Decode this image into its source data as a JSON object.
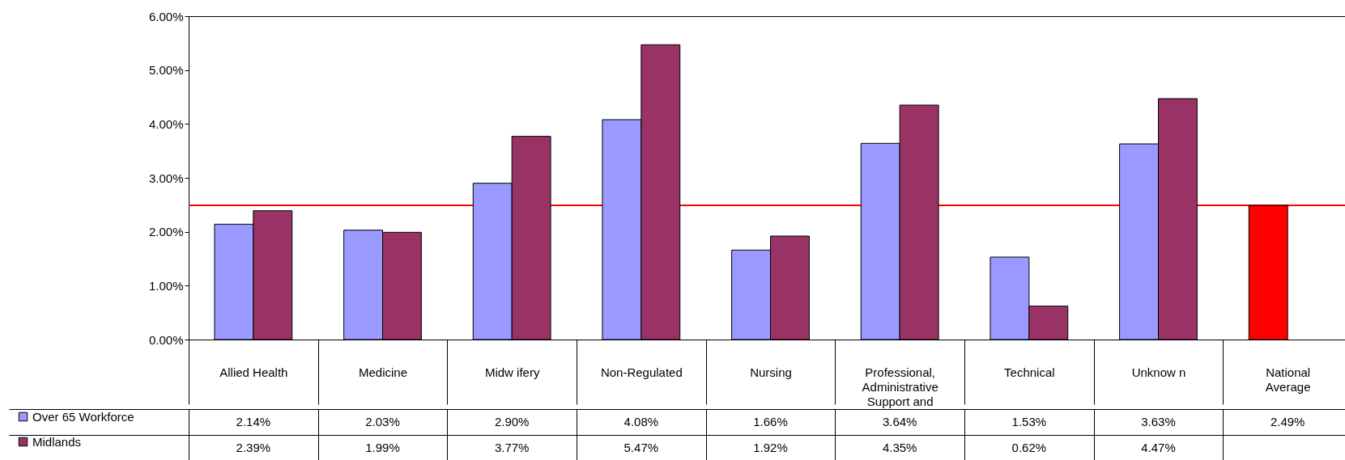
{
  "chart_data": {
    "type": "bar",
    "categories": [
      "Allied Health",
      "Medicine",
      "Midw ifery",
      "Non-Regulated",
      "Nursing",
      "Professional, Administrative Support and",
      "Technical",
      "Unknow n",
      "National Average"
    ],
    "series": [
      {
        "name": "Over 65 Workforce",
        "color": "#9999ff",
        "colors": [
          "#9999ff",
          "#9999ff",
          "#9999ff",
          "#9999ff",
          "#9999ff",
          "#9999ff",
          "#9999ff",
          "#9999ff",
          "#ff0000"
        ],
        "values": [
          2.14,
          2.03,
          2.9,
          4.08,
          1.66,
          3.64,
          1.53,
          3.63,
          2.49
        ],
        "value_labels": [
          "2.14%",
          "2.03%",
          "2.90%",
          "4.08%",
          "1.66%",
          "3.64%",
          "1.53%",
          "3.63%",
          "2.49%"
        ]
      },
      {
        "name": "Midlands",
        "color": "#993366",
        "values": [
          2.39,
          1.99,
          3.77,
          5.47,
          1.92,
          4.35,
          0.62,
          4.47,
          null
        ],
        "value_labels": [
          "2.39%",
          "1.99%",
          "3.77%",
          "5.47%",
          "1.92%",
          "4.35%",
          "0.62%",
          "4.47%",
          null
        ]
      }
    ],
    "ylim": [
      0,
      6
    ],
    "yticks": [
      {
        "value": 0,
        "label": "0.00%"
      },
      {
        "value": 1,
        "label": "1.00%"
      },
      {
        "value": 2,
        "label": "2.00%"
      },
      {
        "value": 3,
        "label": "3.00%"
      },
      {
        "value": 4,
        "label": "4.00%"
      },
      {
        "value": 5,
        "label": "5.00%"
      },
      {
        "value": 6,
        "label": "6.00%"
      }
    ],
    "ref_lines": [
      {
        "axis": "y",
        "value": 2.49,
        "color": "#ff0000"
      }
    ],
    "grid": false,
    "legend": "bottom left"
  }
}
